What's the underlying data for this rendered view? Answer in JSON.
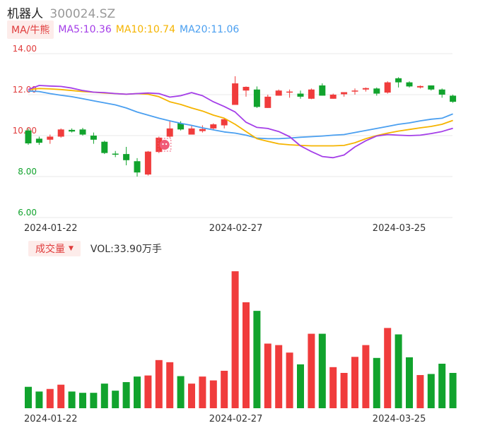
{
  "header": {
    "name": "机器人",
    "code": "300024.SZ"
  },
  "ma_legend": {
    "tag": "MA/牛熊",
    "items": [
      {
        "text": "MA5:10.36",
        "color": "#a43ee8"
      },
      {
        "text": "MA10:10.74",
        "color": "#f5b400"
      },
      {
        "text": "MA20:11.06",
        "color": "#4a9ff0"
      }
    ]
  },
  "volume_legend": {
    "tag": "成交量",
    "caret": "▼",
    "text": "VOL:33.90万手"
  },
  "colors": {
    "up": "#f03c3c",
    "down": "#11a32d",
    "ma5": "#a43ee8",
    "ma10": "#f5b400",
    "ma20": "#4a9ff0",
    "grid": "#e8e8e8",
    "axis_text_up": "#e03c3c",
    "axis_text_down": "#11a32d"
  },
  "chart_data": [
    {
      "type": "candlestick",
      "y_ticks": [
        "14.00",
        "12.00",
        "10.00",
        "8.00",
        "6.00"
      ],
      "ylim": [
        6,
        14
      ],
      "x_tick_labels": [
        {
          "label": "2024-01-22",
          "index": 0
        },
        {
          "label": "2024-02-27",
          "index": 17
        },
        {
          "label": "2024-03-25",
          "index": 32
        }
      ],
      "candles": [
        {
          "o": 10.25,
          "h": 10.35,
          "l": 9.55,
          "c": 9.62
        },
        {
          "o": 9.85,
          "h": 9.95,
          "l": 9.55,
          "c": 9.65
        },
        {
          "o": 9.8,
          "h": 10.05,
          "l": 9.6,
          "c": 9.95
        },
        {
          "o": 9.95,
          "h": 10.35,
          "l": 9.9,
          "c": 10.3
        },
        {
          "o": 10.28,
          "h": 10.35,
          "l": 10.15,
          "c": 10.2
        },
        {
          "o": 10.3,
          "h": 10.38,
          "l": 10.0,
          "c": 10.05
        },
        {
          "o": 10.0,
          "h": 10.15,
          "l": 9.6,
          "c": 9.8
        },
        {
          "o": 9.7,
          "h": 9.75,
          "l": 9.1,
          "c": 9.15
        },
        {
          "o": 9.12,
          "h": 9.25,
          "l": 8.95,
          "c": 9.1
        },
        {
          "o": 9.1,
          "h": 9.45,
          "l": 8.55,
          "c": 8.8
        },
        {
          "o": 8.75,
          "h": 8.9,
          "l": 8.0,
          "c": 8.2
        },
        {
          "o": 8.1,
          "h": 9.25,
          "l": 8.05,
          "c": 9.22
        },
        {
          "o": 9.2,
          "h": 9.95,
          "l": 9.15,
          "c": 9.9
        },
        {
          "o": 9.95,
          "h": 10.7,
          "l": 9.9,
          "c": 10.35
        },
        {
          "o": 10.6,
          "h": 10.7,
          "l": 10.25,
          "c": 10.3
        },
        {
          "o": 10.05,
          "h": 10.5,
          "l": 10.05,
          "c": 10.35
        },
        {
          "o": 10.22,
          "h": 10.5,
          "l": 10.15,
          "c": 10.32
        },
        {
          "o": 10.35,
          "h": 10.6,
          "l": 10.3,
          "c": 10.55
        },
        {
          "o": 10.5,
          "h": 10.85,
          "l": 10.35,
          "c": 10.8
        },
        {
          "o": 11.5,
          "h": 12.9,
          "l": 11.5,
          "c": 12.55
        },
        {
          "o": 12.2,
          "h": 12.4,
          "l": 11.9,
          "c": 12.38
        },
        {
          "o": 12.25,
          "h": 12.4,
          "l": 11.35,
          "c": 11.4
        },
        {
          "o": 11.35,
          "h": 12.0,
          "l": 11.35,
          "c": 11.9
        },
        {
          "o": 11.95,
          "h": 12.25,
          "l": 11.95,
          "c": 12.2
        },
        {
          "o": 12.15,
          "h": 12.25,
          "l": 11.85,
          "c": 12.15
        },
        {
          "o": 12.05,
          "h": 12.2,
          "l": 11.8,
          "c": 11.9
        },
        {
          "o": 11.8,
          "h": 12.3,
          "l": 11.78,
          "c": 12.25
        },
        {
          "o": 12.45,
          "h": 12.55,
          "l": 11.95,
          "c": 11.95
        },
        {
          "o": 11.8,
          "h": 12.05,
          "l": 11.8,
          "c": 12.0
        },
        {
          "o": 12.02,
          "h": 12.12,
          "l": 11.9,
          "c": 12.12
        },
        {
          "o": 12.15,
          "h": 12.3,
          "l": 12.0,
          "c": 12.2
        },
        {
          "o": 12.25,
          "h": 12.35,
          "l": 12.15,
          "c": 12.32
        },
        {
          "o": 12.3,
          "h": 12.35,
          "l": 11.95,
          "c": 12.05
        },
        {
          "o": 12.1,
          "h": 12.65,
          "l": 12.05,
          "c": 12.6
        },
        {
          "o": 12.8,
          "h": 12.85,
          "l": 12.35,
          "c": 12.6
        },
        {
          "o": 12.6,
          "h": 12.65,
          "l": 12.35,
          "c": 12.4
        },
        {
          "o": 12.35,
          "h": 12.45,
          "l": 12.3,
          "c": 12.42
        },
        {
          "o": 12.45,
          "h": 12.45,
          "l": 12.2,
          "c": 12.25
        },
        {
          "o": 12.25,
          "h": 12.3,
          "l": 11.85,
          "c": 12.0
        },
        {
          "o": 11.95,
          "h": 12.0,
          "l": 11.6,
          "c": 11.65
        }
      ],
      "ma5": [
        12.25,
        12.45,
        12.42,
        12.4,
        12.32,
        12.2,
        12.12,
        12.1,
        12.05,
        12.02,
        12.05,
        12.08,
        12.05,
        11.88,
        11.95,
        12.1,
        11.95,
        11.65,
        11.42,
        11.15,
        10.65,
        10.4,
        10.35,
        10.2,
        9.95,
        9.5,
        9.22,
        8.98,
        8.92,
        9.05,
        9.45,
        9.75,
        9.98,
        10.05,
        10.02,
        10.0,
        10.02,
        10.1,
        10.2,
        10.36
      ],
      "ma10": [
        12.25,
        12.3,
        12.28,
        12.25,
        12.2,
        12.15,
        12.12,
        12.08,
        12.05,
        12.02,
        12.05,
        12.02,
        11.9,
        11.65,
        11.52,
        11.35,
        11.2,
        11.0,
        10.85,
        10.55,
        10.2,
        9.85,
        9.72,
        9.6,
        9.55,
        9.52,
        9.5,
        9.5,
        9.5,
        9.52,
        9.65,
        9.85,
        10.0,
        10.12,
        10.22,
        10.3,
        10.38,
        10.45,
        10.55,
        10.74
      ],
      "ma20": [
        12.18,
        12.15,
        12.05,
        11.97,
        11.9,
        11.8,
        11.7,
        11.6,
        11.5,
        11.35,
        11.15,
        11.0,
        10.85,
        10.72,
        10.6,
        10.5,
        10.38,
        10.28,
        10.18,
        10.12,
        10.02,
        9.88,
        9.85,
        9.85,
        9.88,
        9.92,
        9.95,
        9.98,
        10.02,
        10.05,
        10.15,
        10.25,
        10.35,
        10.45,
        10.55,
        10.62,
        10.72,
        10.8,
        10.85,
        11.06
      ]
    },
    {
      "type": "bar",
      "title": "成交量",
      "volumes": [
        1.0,
        0.78,
        0.9,
        1.1,
        0.78,
        0.72,
        0.72,
        1.15,
        0.82,
        1.22,
        1.48,
        1.53,
        2.25,
        2.15,
        1.5,
        1.15,
        1.48,
        1.3,
        1.75,
        6.4,
        4.95,
        4.55,
        3.02,
        2.95,
        2.6,
        2.05,
        3.48,
        3.48,
        1.92,
        1.65,
        2.4,
        2.95,
        2.35,
        3.75,
        3.45,
        2.38,
        1.55,
        1.6,
        2.08,
        1.65
      ]
    }
  ]
}
